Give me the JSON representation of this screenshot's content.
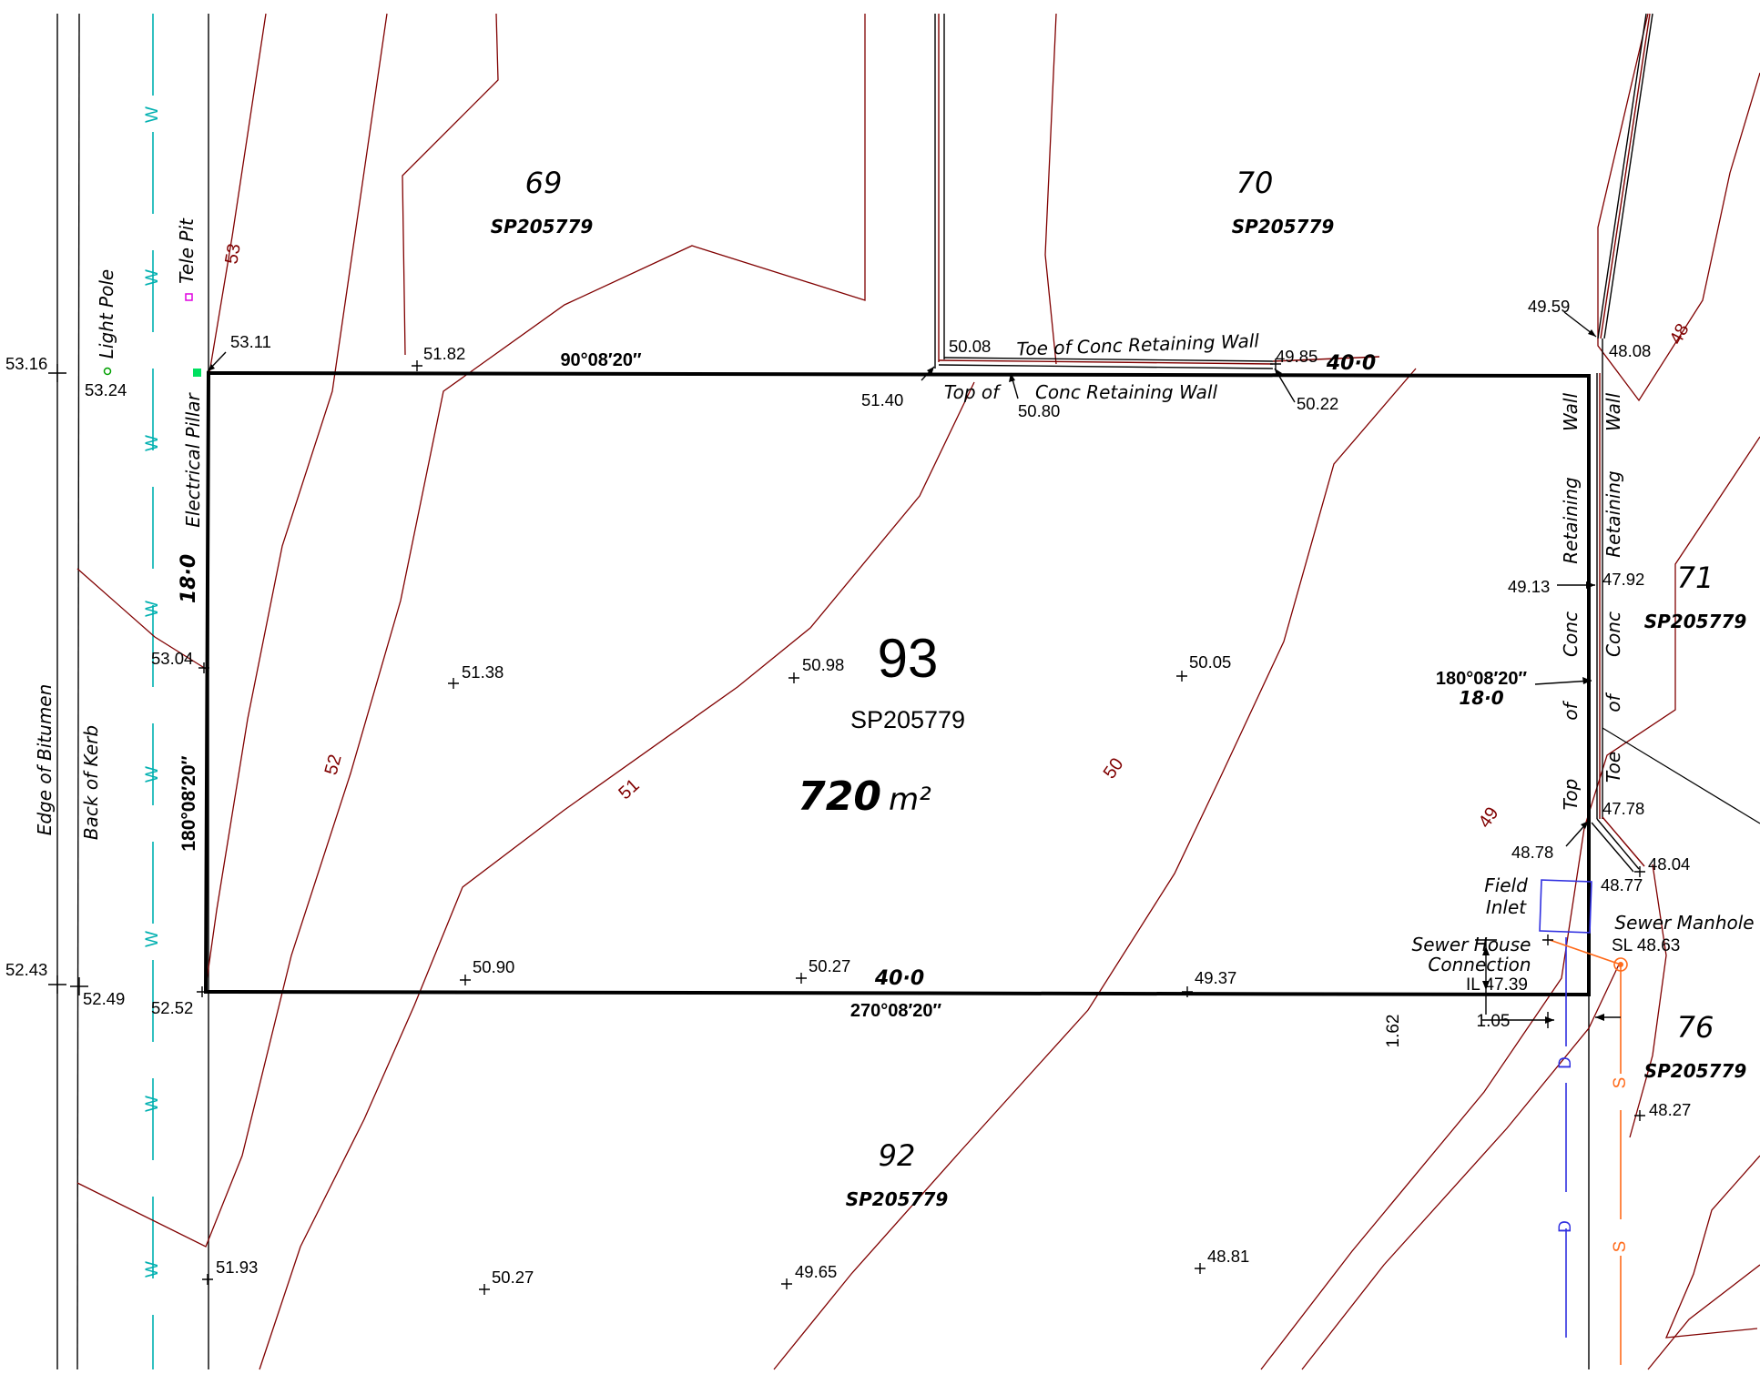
{
  "lots": {
    "main": {
      "number": "93",
      "plan": "SP205779",
      "area_value": "720",
      "area_unit": "m²"
    },
    "north_west": {
      "number": "69",
      "plan": "SP205779"
    },
    "north_east": {
      "number": "70",
      "plan": "SP205779"
    },
    "east": {
      "number": "71",
      "plan": "SP205779"
    },
    "south": {
      "number": "92",
      "plan": "SP205779"
    },
    "south_east": {
      "number": "76",
      "plan": "SP205779"
    }
  },
  "boundaries": {
    "north_bearing": "90°08′20″",
    "north_length": "40·0",
    "south_bearing": "270°08′20″",
    "south_length": "40·0",
    "west_bearing": "180°08′20″",
    "west_length": "18·0",
    "east_bearing": "180°08′20″",
    "east_length": "18·0"
  },
  "features": {
    "edge_of_bitumen": "Edge of Bitumen",
    "back_of_kerb": "Back of Kerb",
    "light_pole": "Light Pole",
    "tele_pit": "Tele Pit",
    "electrical_pillar": "Electrical Pillar",
    "toe_wall_north": "Toe of Conc Retaining Wall",
    "top_north_a": "Top of",
    "top_north_b": "Conc Retaining Wall",
    "east_wall_top": [
      "Top",
      "of",
      "Conc",
      "Retaining",
      "Wall"
    ],
    "east_wall_toe": [
      "Toe",
      "of",
      "Conc",
      "Retaining",
      "Wall"
    ],
    "field_inlet": [
      "Field",
      "Inlet"
    ],
    "sewer_manhole": "Sewer Manhole",
    "sewer_manhole_sl": "SL 48.63",
    "sewer_house_connection": [
      "Sewer House",
      "Connection"
    ],
    "sewer_il": "IL 47.39",
    "offset_vertical": "1.62",
    "offset_horizontal": "1.05",
    "water_marker": "W",
    "drain_marker": "D",
    "sewer_marker": "S"
  },
  "contours": [
    "53",
    "52",
    "51",
    "50",
    "49",
    "48"
  ],
  "spot_levels": [
    "53.16",
    "53.24",
    "53.11",
    "51.82",
    "50.08",
    "51.40",
    "50.80",
    "49.85",
    "50.22",
    "49.59",
    "48.08",
    "49.13",
    "47.92",
    "53.04",
    "51.38",
    "50.98",
    "50.05",
    "48.78",
    "47.78",
    "48.04",
    "48.77",
    "52.43",
    "52.49",
    "52.52",
    "50.90",
    "50.27",
    "49.37",
    "48.27",
    "51.93",
    "50.27",
    "49.65",
    "48.81"
  ],
  "colors": {
    "boundary": "#000000",
    "contour": "#800000",
    "water_main": "#00b0b0",
    "drain": "#3030e0",
    "sewer": "#ff6a1a",
    "tele_pit": "#e000e0",
    "light_pole": "#00a000",
    "pillar": "#00e060"
  }
}
